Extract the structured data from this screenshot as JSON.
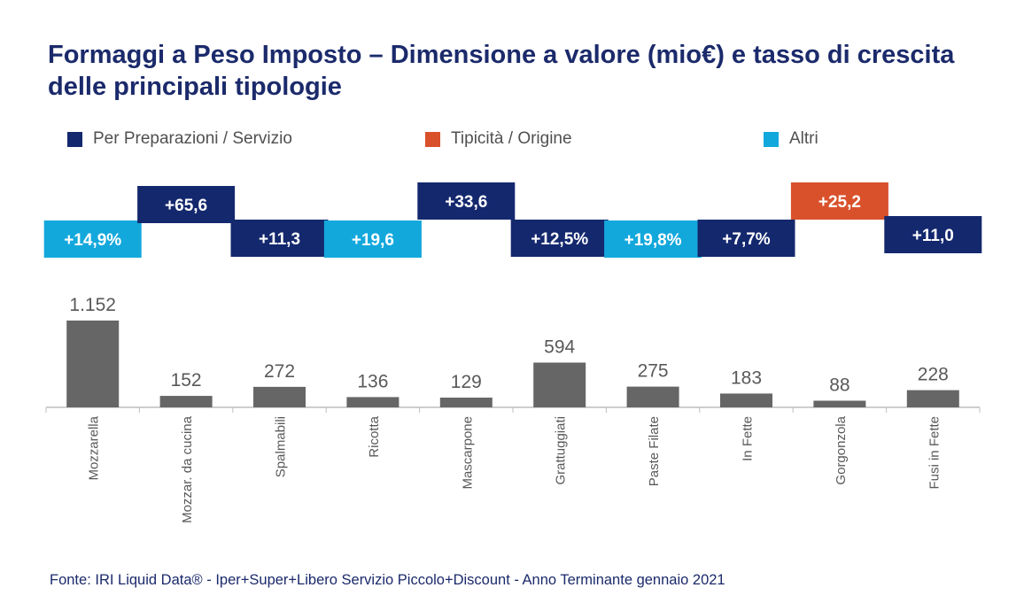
{
  "title": "Formaggi a Peso Imposto – Dimensione a valore (mio€) e tasso di crescita delle principali tipologie",
  "legend": [
    {
      "label": "Per Preparazioni / Servizio",
      "color": "#14286e"
    },
    {
      "label": "Tipicità / Origine",
      "color": "#d9512b"
    },
    {
      "label": "Altri",
      "color": "#13a8dc"
    }
  ],
  "footer": "Fonte: IRI Liquid Data® - Iper+Super+Libero Servizio Piccolo+Discount - Anno Terminante gennaio 2021",
  "chart_data": {
    "type": "bar",
    "title": "Formaggi a Peso Imposto – Dimensione a valore (mio€) e tasso di crescita delle principali tipologie",
    "xlabel": "",
    "ylabel": "",
    "ylim": [
      0,
      1152
    ],
    "grid": false,
    "legend_position": "top",
    "categories": [
      "Mozzarella",
      "Mozzar. da cucina",
      "Spalmabili",
      "Ricotta",
      "Mascarpone",
      "Grattuggiati",
      "Paste Filate",
      "In Fette",
      "Gorgonzola",
      "Fusi in Fette"
    ],
    "values": [
      1152,
      152,
      272,
      136,
      129,
      594,
      275,
      183,
      88,
      228
    ],
    "value_labels": [
      "1.152",
      "152",
      "272",
      "136",
      "129",
      "594",
      "275",
      "183",
      "88",
      "228"
    ],
    "growth_labels": [
      "+14,9%",
      "+65,6",
      "+11,3",
      "+19,6",
      "+33,6",
      "+12,5%",
      "+19,8%",
      "+7,7%",
      "+25,2",
      "+11,0"
    ],
    "growth_groups": [
      "Altri",
      "Per Preparazioni / Servizio",
      "Per Preparazioni / Servizio",
      "Altri",
      "Per Preparazioni / Servizio",
      "Per Preparazioni / Servizio",
      "Altri",
      "Per Preparazioni / Servizio",
      "Tipicità / Origine",
      "Per Preparazioni / Servizio"
    ],
    "bar_color": "#666666"
  }
}
